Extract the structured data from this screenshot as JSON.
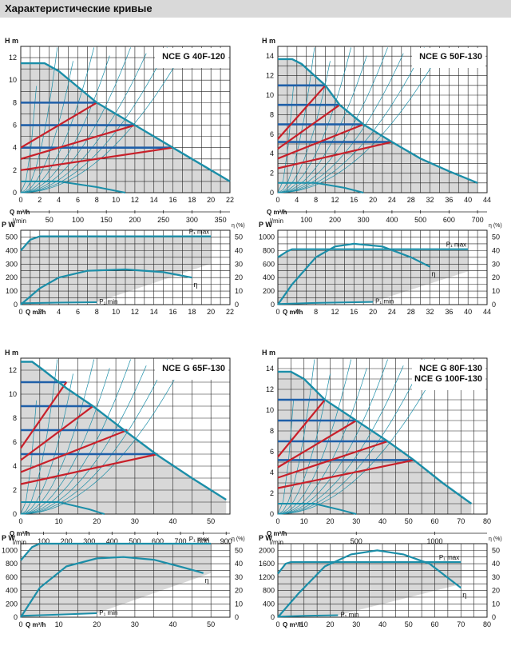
{
  "header": {
    "title": "Характеристические кривые"
  },
  "chart_data": [
    {
      "type": "line",
      "title": "NCE G 40F-120",
      "head": {
        "ylabel": "H m",
        "ylim": [
          0,
          13
        ],
        "yticks": [
          0,
          2,
          4,
          6,
          8,
          10,
          12
        ],
        "xlabel": "Q m³/h",
        "xlim": [
          0,
          22
        ],
        "xticks": [
          0,
          2,
          4,
          6,
          8,
          10,
          12,
          14,
          16,
          18,
          20,
          22
        ],
        "flow_unit": "l/min",
        "flow_ticks": [
          50,
          100,
          150,
          200,
          250,
          300,
          350
        ],
        "max_curve": [
          [
            0,
            11.5
          ],
          [
            2.5,
            11.5
          ],
          [
            4,
            10.8
          ],
          [
            8,
            8.0
          ],
          [
            12,
            6.0
          ],
          [
            16,
            4.0
          ],
          [
            19,
            2.5
          ],
          [
            22,
            1.0
          ]
        ],
        "min_curve": [
          [
            0,
            1.0
          ],
          [
            4,
            1.0
          ],
          [
            8,
            0.5
          ],
          [
            11,
            0
          ]
        ],
        "setpoints": [
          {
            "h": 8,
            "q_max": 8
          },
          {
            "h": 6,
            "q_max": 12
          },
          {
            "h": 4,
            "q_max": 16
          }
        ],
        "proportional": [
          {
            "q_max": 8,
            "h_top": 8,
            "h_zero": 4
          },
          {
            "q_max": 12,
            "h_top": 6,
            "h_zero": 3
          },
          {
            "q_max": 16,
            "h_top": 4,
            "h_zero": 2
          }
        ]
      },
      "power": {
        "p_label": "P W",
        "eta_label": "η (%)",
        "ylim": [
          0,
          550
        ],
        "yticks": [
          0,
          100,
          200,
          300,
          400,
          500
        ],
        "eta_ticks": [
          0,
          10,
          20,
          30,
          40,
          50
        ],
        "xlim": [
          0,
          22
        ],
        "xticks": [
          0,
          2,
          4,
          6,
          8,
          10,
          12,
          14,
          16,
          18,
          20,
          22
        ],
        "xlabel": "Q m³/h",
        "pmax_label": "P₁ max",
        "pmin_label": "P₁ min",
        "eta_curve_label": "η",
        "p1_max": [
          [
            0,
            400
          ],
          [
            1,
            480
          ],
          [
            2,
            505
          ],
          [
            20,
            505
          ]
        ],
        "p1_min": [
          [
            0,
            10
          ],
          [
            4,
            15
          ],
          [
            8,
            18
          ]
        ],
        "eta": [
          [
            0,
            0
          ],
          [
            2,
            12
          ],
          [
            4,
            20
          ],
          [
            7,
            25
          ],
          [
            11,
            26
          ],
          [
            15,
            24
          ],
          [
            18,
            20
          ]
        ]
      }
    },
    {
      "type": "line",
      "title": "NCE G 50F-130",
      "head": {
        "ylabel": "H m",
        "ylim": [
          0,
          15
        ],
        "yticks": [
          0,
          2,
          4,
          6,
          8,
          10,
          12,
          14
        ],
        "xlabel": "Q m³/h",
        "xlim": [
          0,
          44
        ],
        "xticks": [
          0,
          4,
          8,
          12,
          16,
          20,
          24,
          28,
          32,
          36,
          40,
          44
        ],
        "flow_unit": "l/min",
        "flow_ticks": [
          100,
          200,
          300,
          400,
          500,
          600,
          700
        ],
        "max_curve": [
          [
            0,
            13.7
          ],
          [
            3,
            13.7
          ],
          [
            5,
            13.2
          ],
          [
            10,
            11.0
          ],
          [
            13,
            9.0
          ],
          [
            18,
            7.0
          ],
          [
            24,
            5.2
          ],
          [
            30,
            3.5
          ],
          [
            36,
            2.2
          ],
          [
            42,
            1.0
          ]
        ],
        "min_curve": [
          [
            0,
            1.0
          ],
          [
            8,
            1.0
          ],
          [
            14,
            0.5
          ],
          [
            18,
            0
          ]
        ],
        "setpoints": [
          {
            "h": 11,
            "q_max": 10
          },
          {
            "h": 9,
            "q_max": 13
          },
          {
            "h": 7,
            "q_max": 18
          },
          {
            "h": 5.2,
            "q_max": 24
          }
        ],
        "proportional": [
          {
            "q_max": 10,
            "h_top": 11,
            "h_zero": 5.5
          },
          {
            "q_max": 13,
            "h_top": 9,
            "h_zero": 4.5
          },
          {
            "q_max": 18,
            "h_top": 7,
            "h_zero": 3.5
          },
          {
            "q_max": 24,
            "h_top": 5.2,
            "h_zero": 2.5
          }
        ]
      },
      "power": {
        "p_label": "P W",
        "eta_label": "η (%)",
        "ylim": [
          0,
          1100
        ],
        "yticks": [
          0,
          200,
          400,
          600,
          800,
          1000
        ],
        "eta_ticks": [
          0,
          10,
          20,
          30,
          40,
          50
        ],
        "xlim": [
          0,
          44
        ],
        "xticks": [
          0,
          4,
          8,
          12,
          16,
          20,
          24,
          28,
          32,
          36,
          40,
          44
        ],
        "xlabel": "Q m³/h",
        "pmax_label": "P₁ max",
        "pmin_label": "P₁ min",
        "eta_curve_label": "η",
        "p1_max": [
          [
            0,
            700
          ],
          [
            2,
            790
          ],
          [
            3,
            820
          ],
          [
            40,
            820
          ]
        ],
        "p1_min": [
          [
            0,
            10
          ],
          [
            8,
            25
          ],
          [
            20,
            40
          ]
        ],
        "eta": [
          [
            0,
            0
          ],
          [
            3,
            15
          ],
          [
            8,
            35
          ],
          [
            12,
            43
          ],
          [
            16,
            45
          ],
          [
            22,
            43
          ],
          [
            28,
            35
          ],
          [
            32,
            28
          ]
        ]
      }
    },
    {
      "type": "line",
      "title": "NCE G 65F-130",
      "head": {
        "ylabel": "H m",
        "ylim": [
          0,
          13
        ],
        "yticks": [
          0,
          2,
          4,
          6,
          8,
          10,
          12
        ],
        "xlabel": "Q m³/h",
        "xlim": [
          0,
          55
        ],
        "xticks": [
          0,
          10,
          20,
          30,
          40,
          50
        ],
        "flow_unit": "l/min",
        "flow_ticks": [
          100,
          200,
          300,
          400,
          500,
          600,
          700,
          800,
          900
        ],
        "max_curve": [
          [
            0,
            12.7
          ],
          [
            3,
            12.7
          ],
          [
            6,
            12.0
          ],
          [
            12,
            10.5
          ],
          [
            19,
            9.0
          ],
          [
            28,
            6.8
          ],
          [
            36,
            4.9
          ],
          [
            45,
            3.0
          ],
          [
            54,
            1.2
          ]
        ],
        "min_curve": [
          [
            0,
            1.0
          ],
          [
            10,
            1.0
          ],
          [
            18,
            0.4
          ],
          [
            22,
            0
          ]
        ],
        "setpoints": [
          {
            "h": 11,
            "q_max": 12
          },
          {
            "h": 9,
            "q_max": 19
          },
          {
            "h": 7,
            "q_max": 28
          },
          {
            "h": 5,
            "q_max": 36
          }
        ],
        "proportional": [
          {
            "q_max": 12,
            "h_top": 11,
            "h_zero": 5.5
          },
          {
            "q_max": 19,
            "h_top": 9,
            "h_zero": 4.5
          },
          {
            "q_max": 28,
            "h_top": 7,
            "h_zero": 3.5
          },
          {
            "q_max": 36,
            "h_top": 5,
            "h_zero": 2.5
          }
        ]
      },
      "power": {
        "p_label": "P W",
        "eta_label": "η (%)",
        "ylim": [
          0,
          1100
        ],
        "yticks": [
          0,
          200,
          400,
          600,
          800,
          1000
        ],
        "eta_ticks": [
          0,
          10,
          20,
          30,
          40,
          50
        ],
        "xlim": [
          0,
          55
        ],
        "xticks": [
          0,
          10,
          20,
          30,
          40,
          50
        ],
        "xlabel": "Q m³/h",
        "pmax_label": "P₁ max",
        "pmin_label": "P₁ min",
        "eta_curve_label": "η",
        "p1_max": [
          [
            0,
            850
          ],
          [
            3,
            1050
          ],
          [
            5,
            1100
          ],
          [
            50,
            1100
          ]
        ],
        "p1_min": [
          [
            0,
            20
          ],
          [
            10,
            40
          ],
          [
            20,
            60
          ]
        ],
        "eta": [
          [
            0,
            0
          ],
          [
            5,
            22
          ],
          [
            12,
            38
          ],
          [
            20,
            44
          ],
          [
            27,
            45
          ],
          [
            35,
            43
          ],
          [
            43,
            37
          ],
          [
            48,
            33
          ]
        ]
      }
    },
    {
      "type": "line",
      "title": "NCE G  80F-130\nNCE G 100F-130",
      "head": {
        "ylabel": "H m",
        "ylim": [
          0,
          15
        ],
        "yticks": [
          0,
          2,
          4,
          6,
          8,
          10,
          12,
          14
        ],
        "xlabel": "Q m³/h",
        "xlim": [
          0,
          80
        ],
        "xticks": [
          0,
          10,
          20,
          30,
          40,
          50,
          60,
          70,
          80
        ],
        "flow_unit": "l/min",
        "flow_ticks": [
          500,
          1000
        ],
        "max_curve": [
          [
            0,
            13.7
          ],
          [
            5,
            13.7
          ],
          [
            10,
            13.0
          ],
          [
            18,
            11.0
          ],
          [
            30,
            9.0
          ],
          [
            42,
            7.0
          ],
          [
            52,
            5.2
          ],
          [
            63,
            3.0
          ],
          [
            74,
            1.0
          ]
        ],
        "min_curve": [
          [
            0,
            1.0
          ],
          [
            14,
            1.0
          ],
          [
            24,
            0.4
          ],
          [
            30,
            0
          ]
        ],
        "setpoints": [
          {
            "h": 11,
            "q_max": 18
          },
          {
            "h": 9,
            "q_max": 30
          },
          {
            "h": 7,
            "q_max": 42
          },
          {
            "h": 5.2,
            "q_max": 52
          }
        ],
        "proportional": [
          {
            "q_max": 18,
            "h_top": 11,
            "h_zero": 5.5
          },
          {
            "q_max": 30,
            "h_top": 9,
            "h_zero": 4.5
          },
          {
            "q_max": 42,
            "h_top": 7,
            "h_zero": 3.5
          },
          {
            "q_max": 52,
            "h_top": 5.2,
            "h_zero": 2.5
          }
        ]
      },
      "power": {
        "p_label": "P W",
        "eta_label": "η (%)",
        "ylim": [
          0,
          2200
        ],
        "yticks": [
          0,
          400,
          800,
          1200,
          1600,
          2000
        ],
        "eta_ticks": [
          0,
          10,
          20,
          30,
          40,
          50
        ],
        "xlim": [
          0,
          80
        ],
        "xticks": [
          0,
          10,
          20,
          30,
          40,
          50,
          60,
          70,
          80
        ],
        "xlabel": "Q m³/h",
        "pmax_label": "P₁ max",
        "pmin_label": "P₁ min",
        "eta_curve_label": "η",
        "p1_max": [
          [
            0,
            1300
          ],
          [
            3,
            1600
          ],
          [
            5,
            1650
          ],
          [
            70,
            1650
          ]
        ],
        "p1_min": [
          [
            0,
            20
          ],
          [
            10,
            40
          ],
          [
            23,
            60
          ]
        ],
        "eta": [
          [
            0,
            0
          ],
          [
            8,
            18
          ],
          [
            18,
            38
          ],
          [
            28,
            47
          ],
          [
            38,
            50
          ],
          [
            48,
            47
          ],
          [
            58,
            40
          ],
          [
            70,
            22
          ]
        ]
      }
    }
  ]
}
